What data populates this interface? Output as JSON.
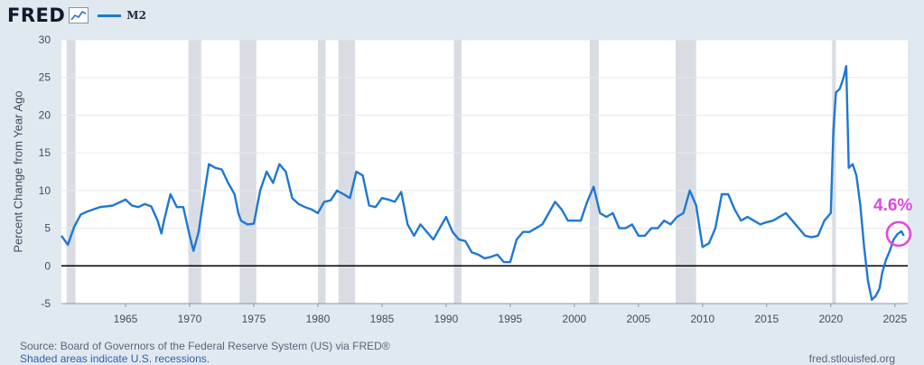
{
  "header": {
    "logo": "FRED",
    "graph_icon": "chart-line-icon",
    "legend_label": "M2"
  },
  "chart_data": {
    "type": "line",
    "series": [
      {
        "name": "M2",
        "color": "#1f77d4",
        "points": [
          [
            1960.0,
            4.0
          ],
          [
            1960.5,
            2.8
          ],
          [
            1961.0,
            5.2
          ],
          [
            1961.5,
            6.8
          ],
          [
            1962.0,
            7.2
          ],
          [
            1962.5,
            7.5
          ],
          [
            1963.0,
            7.8
          ],
          [
            1963.5,
            7.9
          ],
          [
            1964.0,
            8.0
          ],
          [
            1964.5,
            8.4
          ],
          [
            1965.0,
            8.8
          ],
          [
            1965.5,
            8.0
          ],
          [
            1966.0,
            7.8
          ],
          [
            1966.5,
            8.2
          ],
          [
            1967.0,
            7.9
          ],
          [
            1967.5,
            6.0
          ],
          [
            1967.8,
            4.3
          ],
          [
            1968.0,
            6.0
          ],
          [
            1968.5,
            9.5
          ],
          [
            1969.0,
            7.8
          ],
          [
            1969.5,
            7.8
          ],
          [
            1970.0,
            4.0
          ],
          [
            1970.3,
            2.0
          ],
          [
            1970.7,
            4.5
          ],
          [
            1971.0,
            8.0
          ],
          [
            1971.5,
            13.5
          ],
          [
            1972.0,
            13.0
          ],
          [
            1972.5,
            12.8
          ],
          [
            1973.0,
            11.0
          ],
          [
            1973.5,
            9.5
          ],
          [
            1973.8,
            7.0
          ],
          [
            1974.0,
            6.0
          ],
          [
            1974.5,
            5.5
          ],
          [
            1975.0,
            5.6
          ],
          [
            1975.5,
            10.0
          ],
          [
            1976.0,
            12.5
          ],
          [
            1976.5,
            11.0
          ],
          [
            1977.0,
            13.5
          ],
          [
            1977.5,
            12.5
          ],
          [
            1978.0,
            9.0
          ],
          [
            1978.5,
            8.2
          ],
          [
            1979.0,
            7.8
          ],
          [
            1979.5,
            7.5
          ],
          [
            1980.0,
            7.0
          ],
          [
            1980.5,
            8.5
          ],
          [
            1981.0,
            8.7
          ],
          [
            1981.5,
            10.0
          ],
          [
            1982.0,
            9.5
          ],
          [
            1982.5,
            9.0
          ],
          [
            1983.0,
            12.5
          ],
          [
            1983.5,
            12.0
          ],
          [
            1984.0,
            8.0
          ],
          [
            1984.5,
            7.8
          ],
          [
            1985.0,
            9.0
          ],
          [
            1985.5,
            8.8
          ],
          [
            1986.0,
            8.5
          ],
          [
            1986.5,
            9.8
          ],
          [
            1987.0,
            5.5
          ],
          [
            1987.5,
            4.0
          ],
          [
            1988.0,
            5.5
          ],
          [
            1988.5,
            4.5
          ],
          [
            1989.0,
            3.5
          ],
          [
            1989.5,
            5.0
          ],
          [
            1990.0,
            6.5
          ],
          [
            1990.5,
            4.5
          ],
          [
            1991.0,
            3.5
          ],
          [
            1991.5,
            3.3
          ],
          [
            1992.0,
            1.8
          ],
          [
            1992.5,
            1.5
          ],
          [
            1993.0,
            1.0
          ],
          [
            1993.5,
            1.2
          ],
          [
            1994.0,
            1.5
          ],
          [
            1994.5,
            0.5
          ],
          [
            1995.0,
            0.5
          ],
          [
            1995.5,
            3.5
          ],
          [
            1996.0,
            4.5
          ],
          [
            1996.5,
            4.5
          ],
          [
            1997.0,
            5.0
          ],
          [
            1997.5,
            5.5
          ],
          [
            1998.0,
            7.0
          ],
          [
            1998.5,
            8.5
          ],
          [
            1999.0,
            7.5
          ],
          [
            1999.5,
            6.0
          ],
          [
            2000.0,
            6.0
          ],
          [
            2000.5,
            6.0
          ],
          [
            2001.0,
            8.5
          ],
          [
            2001.5,
            10.5
          ],
          [
            2002.0,
            7.0
          ],
          [
            2002.5,
            6.5
          ],
          [
            2003.0,
            7.0
          ],
          [
            2003.5,
            5.0
          ],
          [
            2004.0,
            5.0
          ],
          [
            2004.5,
            5.5
          ],
          [
            2005.0,
            4.0
          ],
          [
            2005.5,
            4.0
          ],
          [
            2006.0,
            5.0
          ],
          [
            2006.5,
            5.0
          ],
          [
            2007.0,
            6.0
          ],
          [
            2007.5,
            5.5
          ],
          [
            2008.0,
            6.5
          ],
          [
            2008.5,
            7.0
          ],
          [
            2009.0,
            10.0
          ],
          [
            2009.5,
            8.0
          ],
          [
            2010.0,
            2.5
          ],
          [
            2010.5,
            3.0
          ],
          [
            2011.0,
            5.0
          ],
          [
            2011.5,
            9.5
          ],
          [
            2012.0,
            9.5
          ],
          [
            2012.5,
            7.5
          ],
          [
            2013.0,
            6.0
          ],
          [
            2013.5,
            6.5
          ],
          [
            2014.0,
            6.0
          ],
          [
            2014.5,
            5.5
          ],
          [
            2015.0,
            5.8
          ],
          [
            2015.5,
            6.0
          ],
          [
            2016.0,
            6.5
          ],
          [
            2016.5,
            7.0
          ],
          [
            2017.0,
            6.0
          ],
          [
            2017.5,
            5.0
          ],
          [
            2018.0,
            4.0
          ],
          [
            2018.5,
            3.8
          ],
          [
            2019.0,
            4.0
          ],
          [
            2019.5,
            6.0
          ],
          [
            2020.0,
            7.0
          ],
          [
            2020.2,
            18.0
          ],
          [
            2020.4,
            23.0
          ],
          [
            2020.7,
            23.5
          ],
          [
            2021.0,
            25.0
          ],
          [
            2021.2,
            26.5
          ],
          [
            2021.4,
            13.0
          ],
          [
            2021.7,
            13.5
          ],
          [
            2022.0,
            12.0
          ],
          [
            2022.3,
            8.0
          ],
          [
            2022.6,
            2.5
          ],
          [
            2022.9,
            -2.0
          ],
          [
            2023.2,
            -4.5
          ],
          [
            2023.5,
            -4.0
          ],
          [
            2023.8,
            -3.0
          ],
          [
            2024.0,
            -1.0
          ],
          [
            2024.3,
            0.8
          ],
          [
            2024.6,
            2.0
          ],
          [
            2024.9,
            3.5
          ],
          [
            2025.2,
            4.2
          ],
          [
            2025.5,
            4.6
          ],
          [
            2025.7,
            4.0
          ]
        ]
      }
    ],
    "recessions": [
      [
        1960.4,
        1961.1
      ],
      [
        1969.9,
        1970.9
      ],
      [
        1973.9,
        1975.2
      ],
      [
        1980.0,
        1980.6
      ],
      [
        1981.6,
        1982.9
      ],
      [
        1990.6,
        1991.2
      ],
      [
        2001.2,
        2001.9
      ],
      [
        2007.9,
        2009.5
      ],
      [
        2020.1,
        2020.4
      ]
    ],
    "xlim": [
      1960.0,
      2026.0
    ],
    "ylim": [
      -5,
      30
    ],
    "yticks": [
      -5,
      0,
      5,
      10,
      15,
      20,
      25,
      30
    ],
    "xticks": [
      1965,
      1970,
      1975,
      1980,
      1985,
      1990,
      1995,
      2000,
      2005,
      2010,
      2015,
      2020,
      2025
    ],
    "ylabel": "Percent Change from Year Ago",
    "annotation": {
      "label": "4.6%",
      "x": 2025.5,
      "y": 4.6,
      "color": "#dd47dd"
    }
  },
  "footer": {
    "source": "Source: Board of Governors of the Federal Reserve System (US) via FRED®",
    "note": "Shaded areas indicate U.S. recessions.",
    "url": "fred.stlouisfed.org"
  }
}
